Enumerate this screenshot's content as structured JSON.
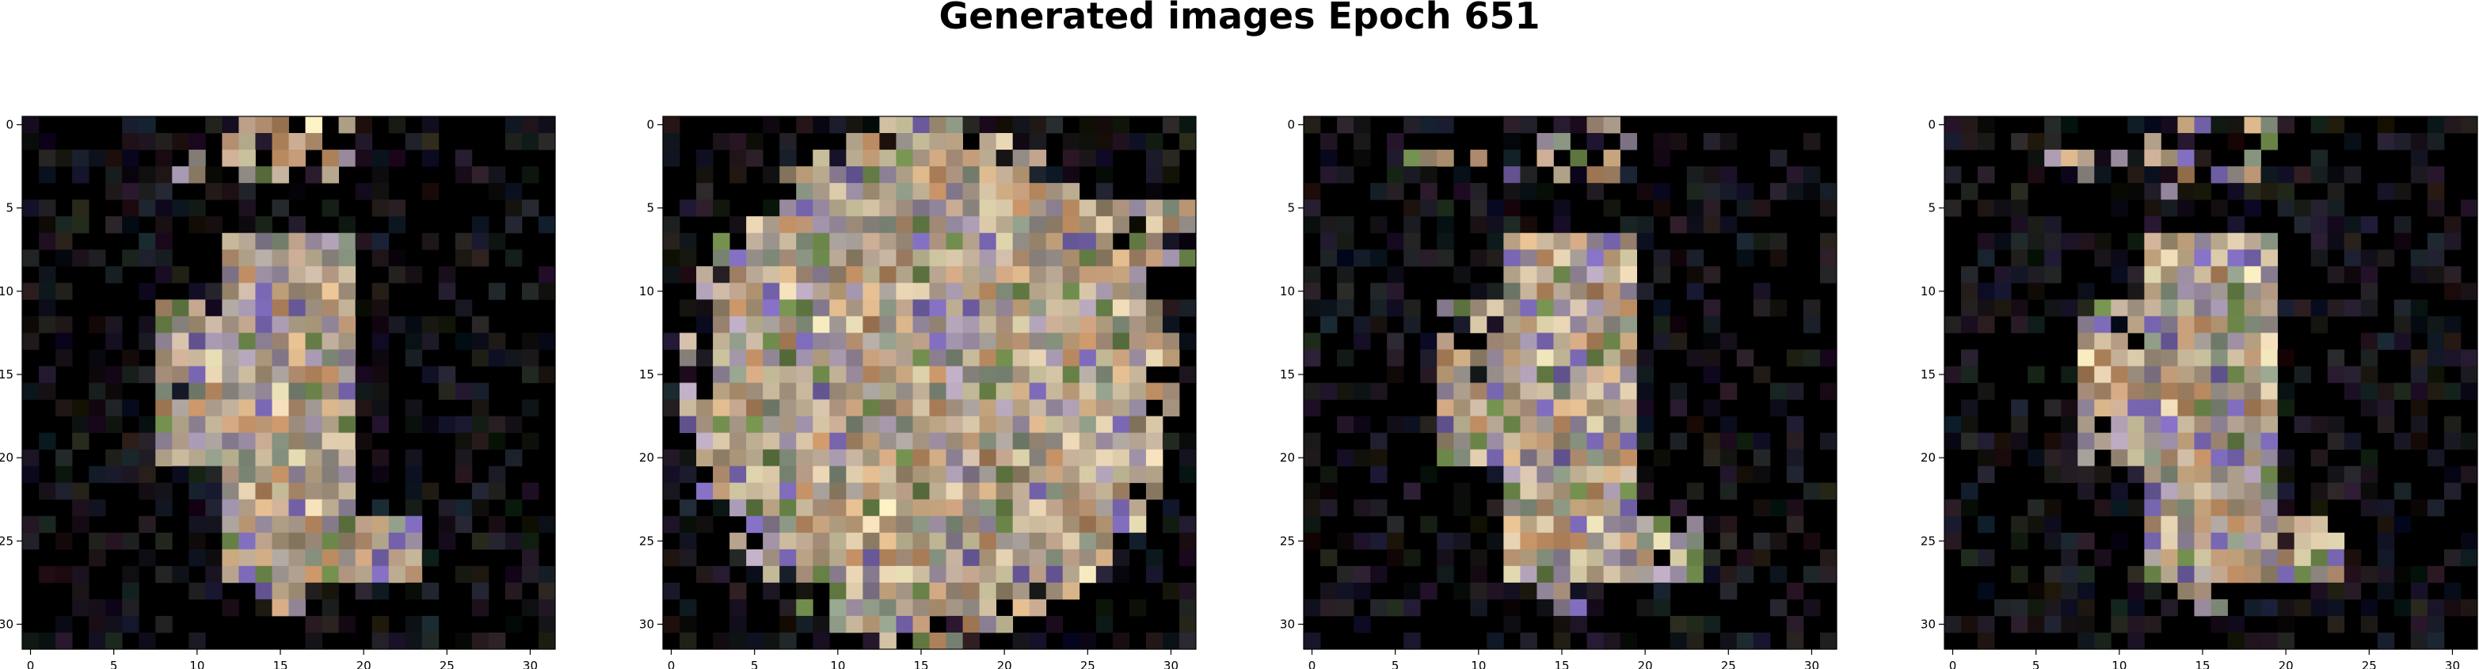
{
  "title": "Generated images Epoch 651",
  "x_ticks": [
    "0",
    "5",
    "10",
    "15",
    "20",
    "25",
    "30"
  ],
  "y_ticks": [
    "0",
    "5",
    "10",
    "15",
    "20",
    "25",
    "30"
  ],
  "grid_size": 32,
  "colors": {
    "background": "#000000",
    "palette": [
      "#c9b6a3",
      "#b9a58f",
      "#d8c7a8",
      "#a9a19b",
      "#c2a58e",
      "#e2cfae",
      "#9c8fa6",
      "#b3a3b8",
      "#d9b58a",
      "#aa9679",
      "#c79f7c",
      "#8e9a86",
      "#6f8a4c",
      "#7d6ab8",
      "#bf8e63",
      "#e6dcb3"
    ]
  },
  "panels": [
    {
      "name": "panel-1",
      "variant": "sparse"
    },
    {
      "name": "panel-2",
      "variant": "dense"
    },
    {
      "name": "panel-3",
      "variant": "sparse"
    },
    {
      "name": "panel-4",
      "variant": "sparse"
    }
  ]
}
